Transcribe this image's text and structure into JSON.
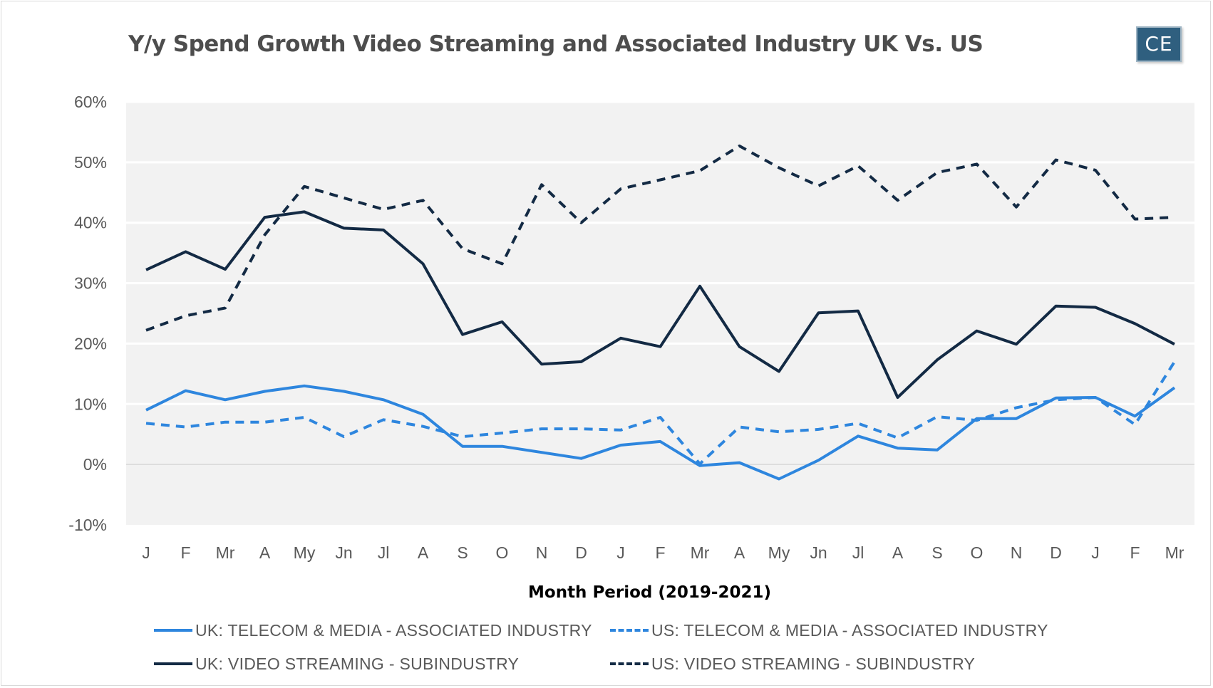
{
  "chart_data": {
    "type": "line",
    "title": "Y/y Spend Growth Video Streaming and Associated Industry UK Vs. US",
    "logo_text": "CE",
    "xlabel": "Month Period (2019-2021)",
    "ylabel": "",
    "ylim": [
      -10,
      60
    ],
    "yticks": [
      -10,
      0,
      10,
      20,
      30,
      40,
      50,
      60
    ],
    "ytick_labels": [
      "-10%",
      "0%",
      "10%",
      "20%",
      "30%",
      "40%",
      "50%",
      "60%"
    ],
    "grid": true,
    "legend_position": "bottom",
    "categories": [
      "J",
      "F",
      "Mr",
      "A",
      "My",
      "Jn",
      "Jl",
      "A",
      "S",
      "O",
      "N",
      "D",
      "J",
      "F",
      "Mr",
      "A",
      "My",
      "Jn",
      "Jl",
      "A",
      "S",
      "O",
      "N",
      "D",
      "J",
      "F",
      "Mr"
    ],
    "series": [
      {
        "name": "UK: TELECOM & MEDIA - ASSOCIATED INDUSTRY",
        "color": "#2e86de",
        "dash": "solid",
        "values": [
          9.0,
          12.2,
          10.7,
          12.1,
          13.0,
          12.1,
          10.7,
          8.3,
          3.0,
          3.0,
          2.0,
          1.0,
          3.2,
          3.8,
          -0.2,
          0.3,
          -2.4,
          0.7,
          4.7,
          2.7,
          2.4,
          7.6,
          7.6,
          11.0,
          11.1,
          8.0,
          12.7
        ]
      },
      {
        "name": "US: TELECOM & MEDIA - ASSOCIATED INDUSTRY",
        "color": "#2e86de",
        "dash": "dashed",
        "values": [
          6.8,
          6.2,
          7.0,
          7.0,
          7.8,
          4.6,
          7.4,
          6.3,
          4.6,
          5.2,
          5.9,
          5.9,
          5.7,
          7.8,
          0.1,
          6.2,
          5.4,
          5.8,
          6.8,
          4.4,
          7.9,
          7.3,
          9.4,
          10.7,
          11.1,
          6.6,
          17.0
        ]
      },
      {
        "name": "UK: VIDEO STREAMING - SUBINDUSTRY",
        "color": "#132a44",
        "dash": "solid",
        "values": [
          32.2,
          35.2,
          32.3,
          40.9,
          41.8,
          39.1,
          38.8,
          33.2,
          21.5,
          23.6,
          16.6,
          17.0,
          20.9,
          19.5,
          29.5,
          19.5,
          15.4,
          25.1,
          25.4,
          11.1,
          17.3,
          22.1,
          19.9,
          26.2,
          26.0,
          23.3,
          19.9
        ]
      },
      {
        "name": "US: VIDEO STREAMING - SUBINDUSTRY",
        "color": "#132a44",
        "dash": "dashed",
        "values": [
          22.2,
          24.6,
          25.9,
          38.0,
          46.0,
          44.1,
          42.2,
          43.7,
          35.7,
          33.2,
          46.3,
          40.0,
          45.6,
          47.1,
          48.6,
          52.7,
          49.1,
          46.1,
          49.4,
          43.7,
          48.3,
          49.7,
          42.6,
          50.4,
          48.7,
          40.6,
          40.9
        ]
      }
    ]
  }
}
